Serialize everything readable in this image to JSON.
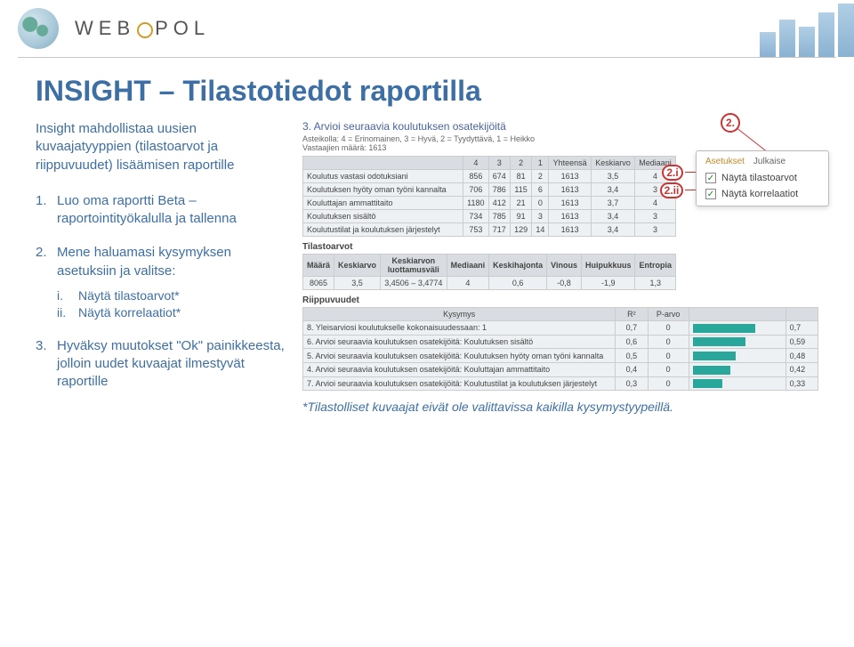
{
  "header": {
    "brand_a": "WEB",
    "brand_b": "POL"
  },
  "title": "INSIGHT – Tilastotiedot raportilla",
  "intro": "Insight mahdollistaa uusien kuvaajatyyppien (tilastoarvot ja riippuvuudet) lisäämisen raportille",
  "steps": [
    {
      "n": "1.",
      "t": "Luo oma raportti Beta – raportointityökalulla ja tallenna"
    },
    {
      "n": "2.",
      "t": "Mene haluamasi kysymyksen asetuksiin ja valitse:"
    }
  ],
  "substeps": [
    {
      "n": "i.",
      "t": "Näytä tilastoarvot*"
    },
    {
      "n": "ii.",
      "t": "Näytä korrelaatiot*"
    }
  ],
  "step3": {
    "n": "3.",
    "t": "Hyväksy muutokset \"Ok\" painikkeesta, jolloin uudet kuvaajat ilmestyvät raportille"
  },
  "footnote": "*Tilastolliset kuvaajat eivät ole valittavissa kaikilla kysymystyypeillä.",
  "panel": {
    "section_title": "3. Arvioi seuraavia koulutuksen osatekijöitä",
    "scale_text": "Asteikolla: 4 = Erinomainen, 3 = Hyvä, 2 = Tyydyttävä, 1 = Heikko",
    "resp_label": "Vastaajien määrä: 1613",
    "t1": {
      "head": [
        "",
        "4",
        "3",
        "2",
        "1",
        "Yhteensä",
        "Keskiarvo",
        "Mediaani"
      ],
      "rows": [
        [
          "Koulutus vastasi odotuksiani",
          "856",
          "674",
          "81",
          "2",
          "1613",
          "3,5",
          "4"
        ],
        [
          "Koulutuksen hyöty oman työni kannalta",
          "706",
          "786",
          "115",
          "6",
          "1613",
          "3,4",
          "3"
        ],
        [
          "Kouluttajan ammattitaito",
          "1180",
          "412",
          "21",
          "0",
          "1613",
          "3,7",
          "4"
        ],
        [
          "Koulutuksen sisältö",
          "734",
          "785",
          "91",
          "3",
          "1613",
          "3,4",
          "3"
        ],
        [
          "Koulutustilat ja koulutuksen järjestelyt",
          "753",
          "717",
          "129",
          "14",
          "1613",
          "3,4",
          "3"
        ]
      ]
    },
    "stats_label": "Tilastoarvot",
    "tstats": {
      "head": [
        "Määrä",
        "Keskiarvo",
        "Keskiarvon luottamusväli",
        "Mediaani",
        "Keskihajonta",
        "Vinous",
        "Huipukkuus",
        "Entropia"
      ],
      "row": [
        "8065",
        "3,5",
        "3,4506 – 3,4774",
        "4",
        "0,6",
        "-0,8",
        "-1,9",
        "1,3"
      ]
    },
    "dep_label": "Riippuvuudet",
    "tr2": {
      "head": [
        "Kysymys",
        "R²",
        "P-arvo",
        "",
        ""
      ],
      "rows": [
        [
          "8. Yleisarviosi koulutukselle kokonaisuudessaan: 1",
          "0,7",
          "0",
          "0,7",
          70
        ],
        [
          "6. Arvioi seuraavia koulutuksen osatekijöitä: Koulutuksen sisältö",
          "0,6",
          "0",
          "0,59",
          59
        ],
        [
          "5. Arvioi seuraavia koulutuksen osatekijöitä: Koulutuksen hyöty oman työni kannalta",
          "0,5",
          "0",
          "0,48",
          48
        ],
        [
          "4. Arvioi seuraavia koulutuksen osatekijöitä: Kouluttajan ammattitaito",
          "0,4",
          "0",
          "0,42",
          42
        ],
        [
          "7. Arvioi seuraavia koulutuksen osatekijöitä: Koulutustilat ja koulutuksen järjestelyt",
          "0,3",
          "0",
          "0,33",
          33
        ]
      ]
    }
  },
  "popup": {
    "hdr_a": "Asetukset",
    "hdr_b": "Julkaise",
    "opt1": "Näytä tilastoarvot",
    "opt2": "Näytä korrelaatiot"
  },
  "badges": {
    "b2": "2.",
    "b2i": "2.i",
    "b2ii": "2.ii"
  },
  "colors": {
    "accent": "#3d6fa5",
    "check": "#1a8a1a",
    "callout": "#c33",
    "bar": "#28a79a"
  }
}
